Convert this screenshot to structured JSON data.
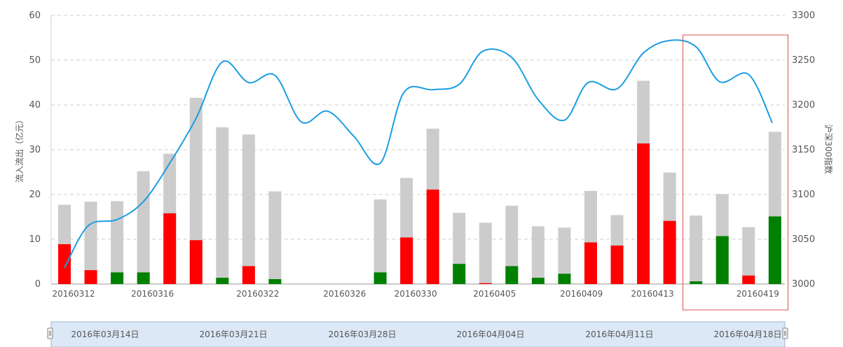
{
  "chart_data": {
    "type": "bar",
    "y_left_label": "流入流出（亿元）",
    "y_right_label": "沪深300指数",
    "y_left_ticks": [
      "0",
      "10",
      "20",
      "30",
      "40",
      "50",
      "60"
    ],
    "y_right_ticks": [
      "3000",
      "3050",
      "3100",
      "3150",
      "3200",
      "3250",
      "3300"
    ],
    "y_left_range": [
      0,
      60
    ],
    "y_right_range": [
      3000,
      3300
    ],
    "x_tick_labels": [
      {
        "label": "20160312",
        "index": 0
      },
      {
        "label": "20160316",
        "index": 3
      },
      {
        "label": "20160322",
        "index": 7
      },
      {
        "label": "20160326",
        "index": 10.3
      },
      {
        "label": "20160330",
        "index": 13
      },
      {
        "label": "20160405",
        "index": 16
      },
      {
        "label": "20160409",
        "index": 19.3
      },
      {
        "label": "20160413",
        "index": 22
      },
      {
        "label": "20160419",
        "index": 26
      }
    ],
    "slot_count": 27,
    "bars": [
      {
        "slot": 0,
        "total": 17.7,
        "net": 8.9,
        "dir": "in"
      },
      {
        "slot": 1,
        "total": 18.4,
        "net": 3.1,
        "dir": "in"
      },
      {
        "slot": 2,
        "total": 18.5,
        "net": 2.6,
        "dir": "out"
      },
      {
        "slot": 3,
        "total": 25.2,
        "net": 2.6,
        "dir": "out"
      },
      {
        "slot": 4,
        "total": 29.1,
        "net": 15.8,
        "dir": "in"
      },
      {
        "slot": 5,
        "total": 41.6,
        "net": 9.8,
        "dir": "in"
      },
      {
        "slot": 6,
        "total": 35.0,
        "net": 1.4,
        "dir": "out"
      },
      {
        "slot": 7,
        "total": 33.4,
        "net": 4.0,
        "dir": "in"
      },
      {
        "slot": 8,
        "total": 20.7,
        "net": 1.1,
        "dir": "out"
      },
      {
        "slot": 12,
        "total": 18.9,
        "net": 2.6,
        "dir": "out"
      },
      {
        "slot": 13,
        "total": 23.7,
        "net": 10.4,
        "dir": "in"
      },
      {
        "slot": 14,
        "total": 34.7,
        "net": 21.1,
        "dir": "in"
      },
      {
        "slot": 15,
        "total": 15.9,
        "net": 4.5,
        "dir": "out"
      },
      {
        "slot": 16,
        "total": 13.7,
        "net": 0.2,
        "dir": "in"
      },
      {
        "slot": 17,
        "total": 17.5,
        "net": 4.0,
        "dir": "out"
      },
      {
        "slot": 18,
        "total": 12.9,
        "net": 1.4,
        "dir": "out"
      },
      {
        "slot": 19,
        "total": 12.6,
        "net": 2.3,
        "dir": "out"
      },
      {
        "slot": 20,
        "total": 20.8,
        "net": 9.3,
        "dir": "in"
      },
      {
        "slot": 21,
        "total": 15.4,
        "net": 8.6,
        "dir": "in"
      },
      {
        "slot": 22,
        "total": 45.4,
        "net": 31.4,
        "dir": "in"
      },
      {
        "slot": 23,
        "total": 24.9,
        "net": 14.1,
        "dir": "in"
      },
      {
        "slot": 24,
        "total": 15.3,
        "net": 0.6,
        "dir": "out"
      },
      {
        "slot": 25,
        "total": 20.1,
        "net": 10.7,
        "dir": "out"
      },
      {
        "slot": 26,
        "total": 12.7,
        "net": 1.9,
        "dir": "in"
      },
      {
        "slot": 27,
        "total": 34.0,
        "net": 15.1,
        "dir": "out"
      }
    ],
    "index_line": [
      {
        "slot": 0,
        "value": 3018
      },
      {
        "slot": 0.9,
        "value": 3065
      },
      {
        "slot": 2,
        "value": 3072
      },
      {
        "slot": 3,
        "value": 3092
      },
      {
        "slot": 4,
        "value": 3135
      },
      {
        "slot": 5,
        "value": 3185
      },
      {
        "slot": 6,
        "value": 3248
      },
      {
        "slot": 7,
        "value": 3225
      },
      {
        "slot": 8,
        "value": 3233
      },
      {
        "slot": 9,
        "value": 3181
      },
      {
        "slot": 10,
        "value": 3193
      },
      {
        "slot": 11,
        "value": 3165
      },
      {
        "slot": 12,
        "value": 3135
      },
      {
        "slot": 12.9,
        "value": 3214
      },
      {
        "slot": 14,
        "value": 3217
      },
      {
        "slot": 15,
        "value": 3223
      },
      {
        "slot": 15.9,
        "value": 3260
      },
      {
        "slot": 17,
        "value": 3253
      },
      {
        "slot": 18,
        "value": 3206
      },
      {
        "slot": 19,
        "value": 3183
      },
      {
        "slot": 19.9,
        "value": 3225
      },
      {
        "slot": 21,
        "value": 3218
      },
      {
        "slot": 22,
        "value": 3258
      },
      {
        "slot": 23,
        "value": 3272
      },
      {
        "slot": 24,
        "value": 3265
      },
      {
        "slot": 24.9,
        "value": 3226
      },
      {
        "slot": 26,
        "value": 3234
      },
      {
        "slot": 26.9,
        "value": 3180
      }
    ],
    "highlight_slots": [
      24,
      27
    ],
    "colors": {
      "inflow": "#ff0000",
      "outflow": "#008000",
      "total": "#cccccc",
      "line": "#1a9ee2",
      "grid": "#cfcfcf",
      "highlight": "#d9534f",
      "navigator_fill": "#dce8f6",
      "navigator_border": "#9fb6d4"
    }
  },
  "navigator": {
    "labels": [
      "2016年03月14日",
      "2016年03月21日",
      "2016年03月28日",
      "2016年04月04日",
      "2016年04月11日",
      "2016年04月18日"
    ]
  }
}
